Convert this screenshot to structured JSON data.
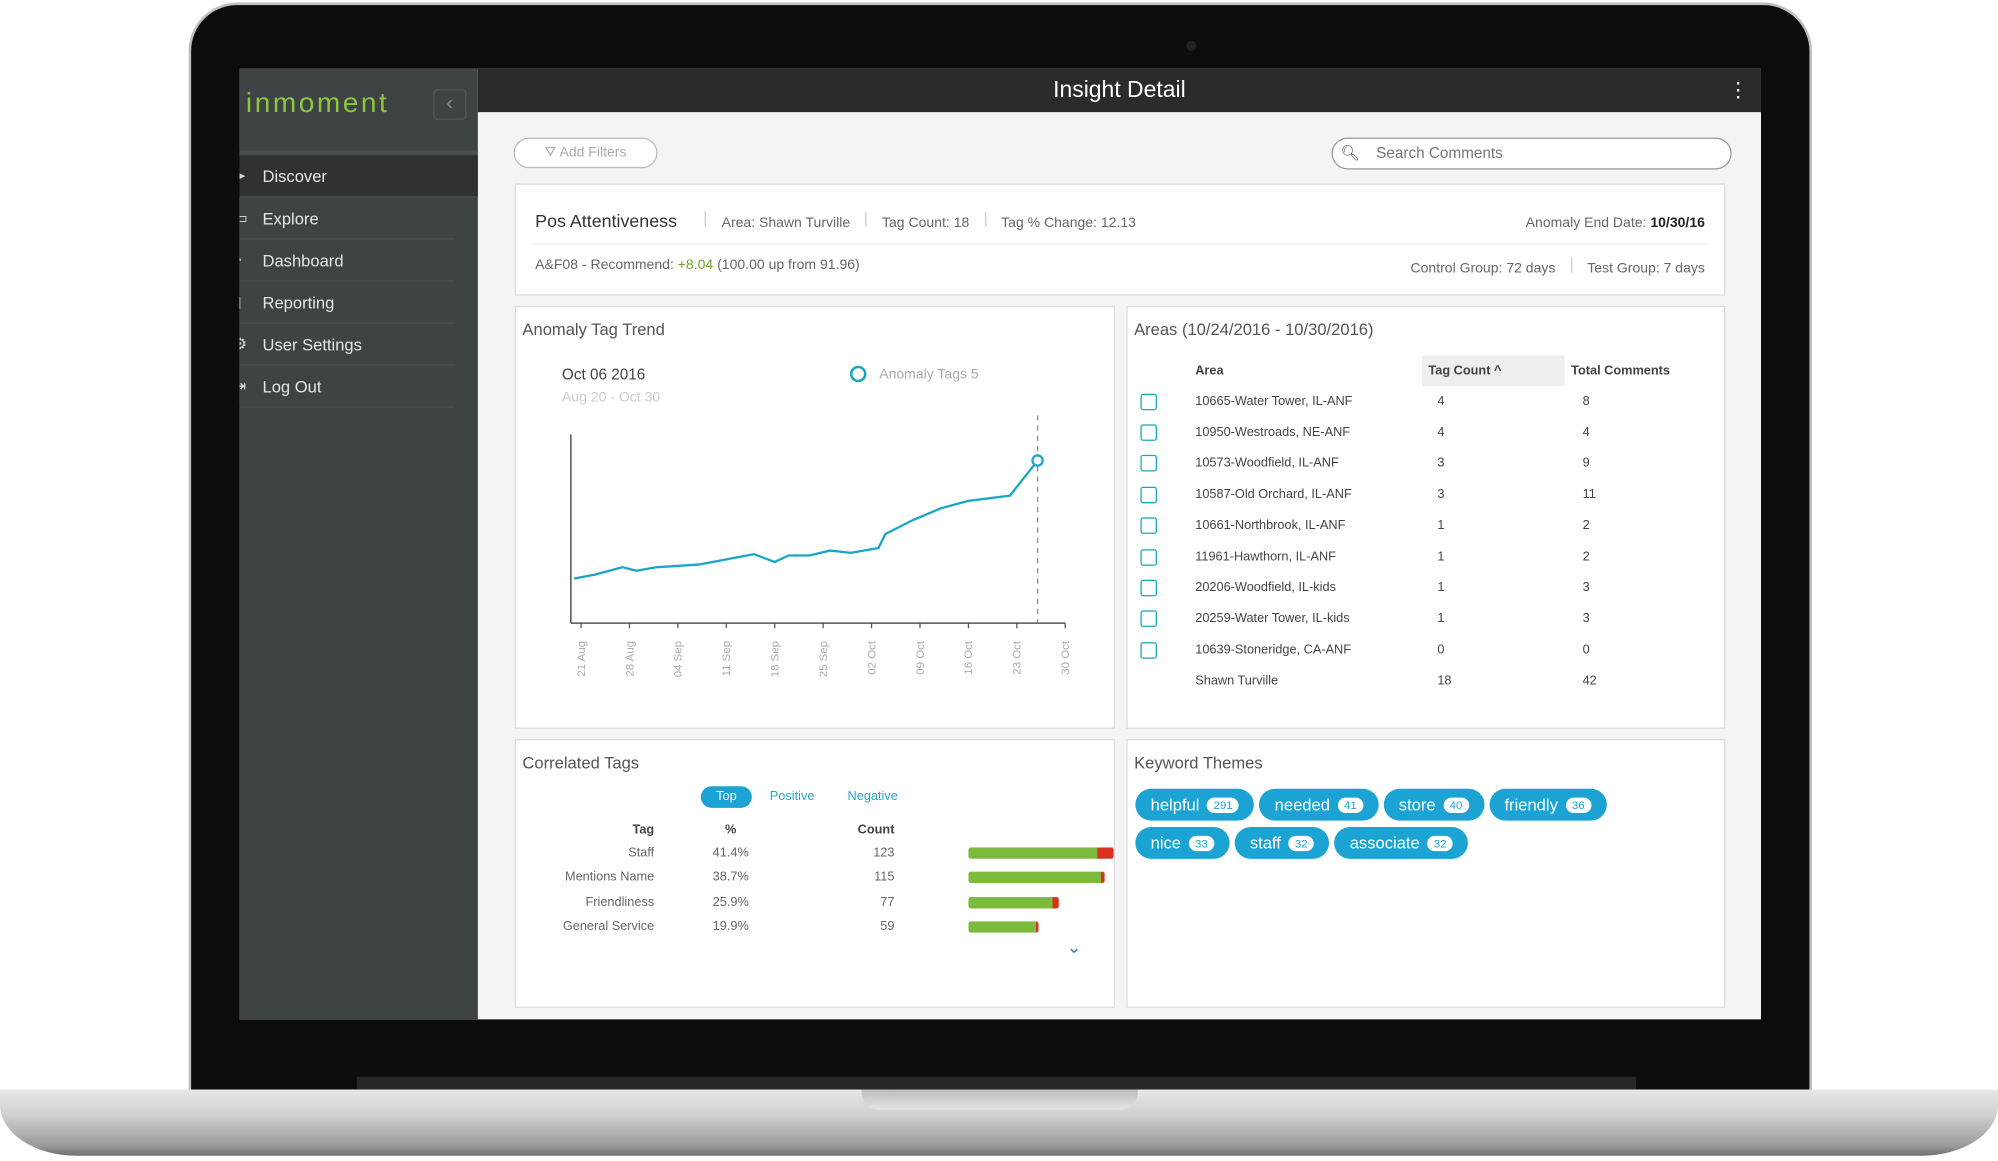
{
  "app": {
    "logo": "inmoment",
    "title": "Insight Detail",
    "collapse_icon": "chevron-left-icon",
    "menu_icon": "kebab-icon"
  },
  "sidebar": {
    "items": [
      {
        "label": "Discover",
        "icon": "cursor-icon",
        "active": true
      },
      {
        "label": "Explore",
        "icon": "comment-icon"
      },
      {
        "label": "Dashboard",
        "icon": "dashboard-icon"
      },
      {
        "label": "Reporting",
        "icon": "report-icon"
      },
      {
        "label": "User Settings",
        "icon": "gear-icon"
      },
      {
        "label": "Log Out",
        "icon": "logout-icon"
      }
    ]
  },
  "toolbar": {
    "add_filters": "Add Filters",
    "search_placeholder": "Search Comments"
  },
  "header": {
    "name": "Pos Attentiveness",
    "area": "Area: Shawn Turville",
    "tag_count": "Tag Count: 18",
    "tag_change": "Tag % Change: 12.13",
    "end_label": "Anomaly End Date:",
    "end_date": "10/30/16",
    "metric_prefix": "A&F08 - Recommend:",
    "metric_delta": "+8.04",
    "metric_suffix": "(100.00 up from 91.96)",
    "control": "Control Group: 72 days",
    "test": "Test Group: 7 days"
  },
  "trend": {
    "title": "Anomaly Tag Trend",
    "date": "Oct 06 2016",
    "range": "Aug 20 - Oct 30",
    "legend": "Anomaly Tags 5"
  },
  "chart_data": {
    "type": "line",
    "title": "Anomaly Tag Trend",
    "series": [
      {
        "name": "Anomaly Tags",
        "color": "#1aa6c4",
        "x": [
          "2016-08-20",
          "2016-08-23",
          "2016-08-27",
          "2016-08-29",
          "2016-09-01",
          "2016-09-07",
          "2016-09-11",
          "2016-09-15",
          "2016-09-18",
          "2016-09-20",
          "2016-09-23",
          "2016-09-26",
          "2016-09-29",
          "2016-10-03",
          "2016-10-04",
          "2016-10-08",
          "2016-10-12",
          "2016-10-16",
          "2016-10-22",
          "2016-10-26"
        ],
        "y": [
          1.37,
          1.49,
          1.72,
          1.61,
          1.72,
          1.8,
          1.96,
          2.12,
          1.88,
          2.08,
          2.08,
          2.23,
          2.16,
          2.31,
          2.74,
          3.17,
          3.53,
          3.76,
          3.92,
          5.0
        ]
      }
    ],
    "x_ticks": [
      "21 Aug",
      "28 Aug",
      "04 Sep",
      "11 Sep",
      "18 Sep",
      "25 Sep",
      "02 Oct",
      "09 Oct",
      "16 Oct",
      "23 Oct",
      "30 Oct"
    ],
    "x_tick_dates": [
      "2016-08-21",
      "2016-08-28",
      "2016-09-04",
      "2016-09-11",
      "2016-09-18",
      "2016-09-25",
      "2016-10-02",
      "2016-10-09",
      "2016-10-16",
      "2016-10-23",
      "2016-10-30"
    ],
    "xlim": [
      "2016-08-19",
      "2016-10-31"
    ],
    "ylim": [
      0,
      5.8
    ],
    "marker_date": "2016-10-26",
    "grid": false
  },
  "areas": {
    "title": "Areas (10/24/2016 - 10/30/2016)",
    "columns": [
      "Area",
      "Tag Count ^",
      "Total Comments"
    ],
    "rows": [
      [
        "10665-Water Tower, IL-ANF",
        "4",
        "8"
      ],
      [
        "10950-Westroads, NE-ANF",
        "4",
        "4"
      ],
      [
        "10573-Woodfield, IL-ANF",
        "3",
        "9"
      ],
      [
        "10587-Old Orchard, IL-ANF",
        "3",
        "11"
      ],
      [
        "10661-Northbrook, IL-ANF",
        "1",
        "2"
      ],
      [
        "11961-Hawthorn, IL-ANF",
        "1",
        "2"
      ],
      [
        "20206-Woodfield, IL-kids",
        "1",
        "3"
      ],
      [
        "20259-Water Tower, IL-kids",
        "1",
        "3"
      ],
      [
        "10639-Stoneridge, CA-ANF",
        "0",
        "0"
      ]
    ],
    "total": [
      "Shawn Turville",
      "18",
      "42"
    ]
  },
  "correlated": {
    "title": "Correlated Tags",
    "tabs": [
      "Top",
      "Positive",
      "Negative"
    ],
    "columns": [
      "Tag",
      "%",
      "Count"
    ],
    "rows": [
      {
        "tag": "Staff",
        "pct": "41.4%",
        "count": "123",
        "n": 123,
        "positive_share": 0.89
      },
      {
        "tag": "Mentions Name",
        "pct": "38.7%",
        "count": "115",
        "n": 115,
        "positive_share": 0.98
      },
      {
        "tag": "Friendliness",
        "pct": "25.9%",
        "count": "77",
        "n": 77,
        "positive_share": 0.93
      },
      {
        "tag": "General Service",
        "pct": "19.9%",
        "count": "59",
        "n": 59,
        "positive_share": 0.97
      }
    ],
    "colors": {
      "positive": "#7cba3d",
      "negative": "#d9321f"
    }
  },
  "keywords": {
    "title": "Keyword Themes",
    "items": [
      {
        "word": "helpful",
        "count": "291"
      },
      {
        "word": "needed",
        "count": "41"
      },
      {
        "word": "store",
        "count": "40"
      },
      {
        "word": "friendly",
        "count": "36"
      },
      {
        "word": "nice",
        "count": "33"
      },
      {
        "word": "staff",
        "count": "32"
      },
      {
        "word": "associate",
        "count": "32"
      }
    ]
  }
}
